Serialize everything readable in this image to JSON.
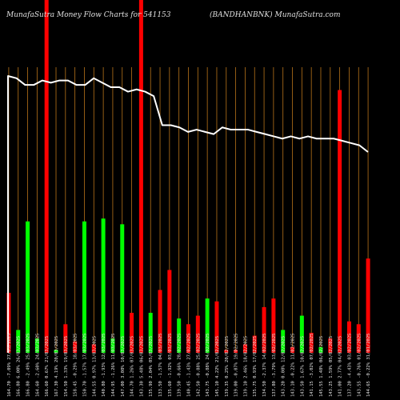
{
  "header": {
    "left_text": "MunafaSutra  Money Flow  Charts for 541153",
    "right_text": "(BANDHANBNK) MunafaSutra.com"
  },
  "colors": {
    "background": "#000000",
    "up": "#00ff00",
    "down": "#ff0000",
    "grid": "#b8741a",
    "line": "#ffffff",
    "label": "#e0e0e0"
  },
  "chart_data": {
    "type": "bar",
    "bars": [
      {
        "label": "164.70 -7.09% 27/03/2025",
        "direction": "down",
        "height": 0.21
      },
      {
        "label": "166.80 6.00% 26/03/2025",
        "direction": "up",
        "height": 0.08
      },
      {
        "label": "166.80 -2.49% 25/03/2025",
        "direction": "up",
        "height": 0.46
      },
      {
        "label": "164.60 -2.60% 24/03/2025",
        "direction": "up",
        "height": 0.05
      },
      {
        "label": "166.60 0.67% 21/03/2025",
        "direction": "down",
        "height": 1.0
      },
      {
        "label": "167.30 4.19% 20/03/2025",
        "direction": "up",
        "height": 0.01
      },
      {
        "label": "154.50 1.33% 19/03/2025",
        "direction": "down",
        "height": 0.1
      },
      {
        "label": "158.45 -0.29% 18/03/2025",
        "direction": "down",
        "height": 0.04
      },
      {
        "label": "150.70 -1.57% 17/03/2025",
        "direction": "up",
        "height": 0.46
      },
      {
        "label": "144.55 0.97% 13/03/2025",
        "direction": "down",
        "height": 0.03
      },
      {
        "label": "140.80 -1.93% 12/03/2025",
        "direction": "up",
        "height": 0.47
      },
      {
        "label": "144.95 -1.26% 11/03/2025",
        "direction": "up",
        "height": 0.05
      },
      {
        "label": "147.00 3.08% 10/03/2025",
        "direction": "up",
        "height": 0.45
      },
      {
        "label": "144.70 1.26% 07/03/2025",
        "direction": "down",
        "height": 0.14
      },
      {
        "label": "143.30 5.48% 06/03/2025",
        "direction": "down",
        "height": 1.0
      },
      {
        "label": "135.90 2.04% 05/03/2025",
        "direction": "up",
        "height": 0.14
      },
      {
        "label": "133.50 -1.57% 04/03/2025",
        "direction": "down",
        "height": 0.22
      },
      {
        "label": "135.60 -1.92% 03/03/2025",
        "direction": "down",
        "height": 0.29
      },
      {
        "label": "139.50 -0.66% 28/02/2025",
        "direction": "up",
        "height": 0.12
      },
      {
        "label": "140.45 -1.43% 27/02/2025",
        "direction": "down",
        "height": 0.1
      },
      {
        "label": "142.50 -0.88% 25/02/2025",
        "direction": "down",
        "height": 0.13
      },
      {
        "label": "143.75 -0.88% 24/02/2025",
        "direction": "up",
        "height": 0.19
      },
      {
        "label": "145.10 4.22% 21/02/2025",
        "direction": "down",
        "height": 0.18
      },
      {
        "label": "139.35 0.25% 20/02/2025",
        "direction": "down",
        "height": 0.01
      },
      {
        "label": "139.00 -0.07% 19/02/2025",
        "direction": "down",
        "height": 0.01
      },
      {
        "label": "139.10 2.46% 18/02/2025",
        "direction": "down",
        "height": 0.03
      },
      {
        "label": "135.75 0.93% 17/02/2025",
        "direction": "down",
        "height": 0.06
      },
      {
        "label": "134.50 -2.37% 14/02/2025",
        "direction": "down",
        "height": 0.16
      },
      {
        "label": "137.80 -3.79% 13/02/2025",
        "direction": "down",
        "height": 0.19
      },
      {
        "label": "143.20 0.08% 12/02/2025",
        "direction": "up",
        "height": 0.08
      },
      {
        "label": "143.10 -0.22% 11/02/2025",
        "direction": "down",
        "height": 0.02
      },
      {
        "label": "143.50 1.67% 10/02/2025",
        "direction": "up",
        "height": 0.13
      },
      {
        "label": "141.15 -3.02% 07/02/2025",
        "direction": "down",
        "height": 0.07
      },
      {
        "label": "145.55 1.48% 06/02/2025",
        "direction": "up",
        "height": 0.02
      },
      {
        "label": "143.25 1.59% 05/02/2025",
        "direction": "down",
        "height": 0.05
      },
      {
        "label": "141.00 2.77% 04/02/2025",
        "direction": "down",
        "height": 0.92
      },
      {
        "label": "137.20 -4.43% 03/02/2025",
        "direction": "down",
        "height": 0.11
      },
      {
        "label": "143.55 -0.76% 01/02/2025",
        "direction": "down",
        "height": 0.1
      },
      {
        "label": "144.65 -0.22% 31/01/2025",
        "direction": "down",
        "height": 0.33
      }
    ],
    "price_line": [
      0.27,
      0.28,
      0.31,
      0.31,
      0.29,
      0.3,
      0.29,
      0.29,
      0.31,
      0.31,
      0.28,
      0.3,
      0.32,
      0.32,
      0.34,
      0.33,
      0.34,
      0.36,
      0.49,
      0.49,
      0.5,
      0.52,
      0.51,
      0.52,
      0.53,
      0.5,
      0.51,
      0.51,
      0.51,
      0.52,
      0.53,
      0.54,
      0.55,
      0.54,
      0.55,
      0.54,
      0.55,
      0.55,
      0.55,
      0.56,
      0.57,
      0.58,
      0.61
    ]
  }
}
